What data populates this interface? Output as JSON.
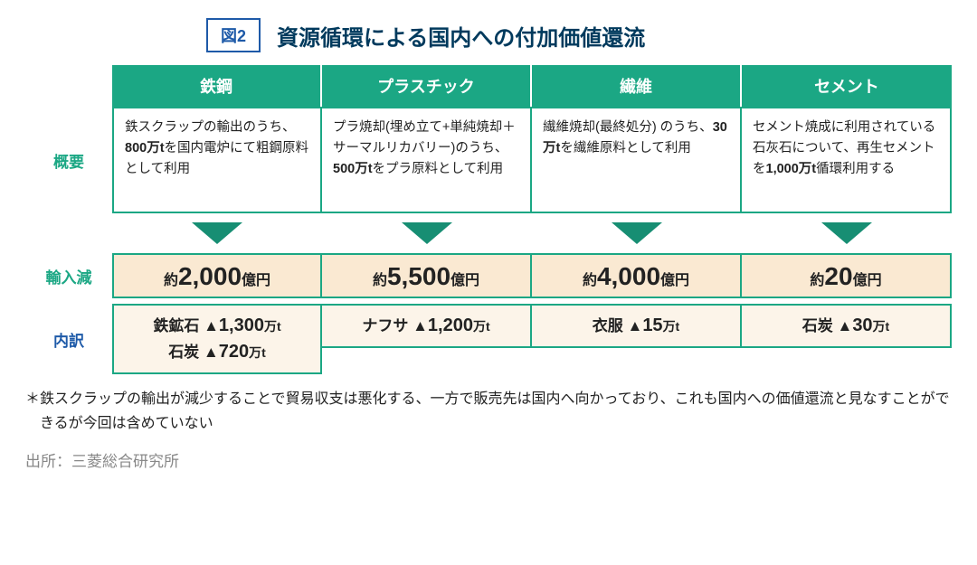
{
  "colors": {
    "brand_blue": "#1e5aa8",
    "teal": "#1ba784",
    "teal_dark": "#178e73",
    "cell_border": "#1ba784",
    "value_bg": "#fae9d2",
    "breakdown_bg": "#fcf4e9",
    "title_color": "#003a5d",
    "text": "#222222",
    "source_gray": "#888888"
  },
  "figure_badge": "図2",
  "figure_title": "資源循環による国内への付加価値還流",
  "row_labels": {
    "summary": "概要",
    "import_reduction": "輸入減",
    "breakdown": "内訳"
  },
  "columns": [
    {
      "header": "鉄鋼",
      "summary_parts": [
        "鉄スクラップの輸出のうち、",
        "800万t",
        "を国内電炉にて粗鋼原料として利用"
      ],
      "value": {
        "prefix": "約",
        "number": "2,000",
        "unit": "億円"
      },
      "breakdown": [
        {
          "material": "鉄鉱石",
          "triangle": "▲",
          "number": "1,300",
          "unit": "万t"
        },
        {
          "material": "石炭",
          "triangle": "▲",
          "number": "720",
          "unit": "万t"
        }
      ]
    },
    {
      "header": "プラスチック",
      "summary_parts": [
        "プラ焼却(埋め立て+単純焼却＋サーマルリカバリー)のうち、",
        "500万t",
        "をプラ原料として利用"
      ],
      "value": {
        "prefix": "約",
        "number": "5,500",
        "unit": "億円"
      },
      "breakdown": [
        {
          "material": "ナフサ",
          "triangle": "▲",
          "number": "1,200",
          "unit": "万t"
        }
      ]
    },
    {
      "header": "繊維",
      "summary_parts": [
        "繊維焼却(最終処分) のうち、",
        "30万t",
        "を繊維原料として利用"
      ],
      "value": {
        "prefix": "約",
        "number": "4,000",
        "unit": "億円"
      },
      "breakdown": [
        {
          "material": "衣服",
          "triangle": "▲",
          "number": "15",
          "unit": "万t"
        }
      ]
    },
    {
      "header": "セメント",
      "summary_parts": [
        "セメント焼成に利用されている石灰石について、再生セメントを",
        "1,000万t",
        "循環利用する"
      ],
      "value": {
        "prefix": "約",
        "number": "20",
        "unit": "億円"
      },
      "breakdown": [
        {
          "material": "石炭",
          "triangle": "▲",
          "number": "30",
          "unit": "万t"
        }
      ]
    }
  ],
  "footnote": "＊鉄スクラップの輸出が減少することで貿易収支は悪化する、一方で販売先は国内へ向かっており、これも国内への価値還流と見なすことができるが今回は含めていない",
  "source": "出所：三菱総合研究所"
}
